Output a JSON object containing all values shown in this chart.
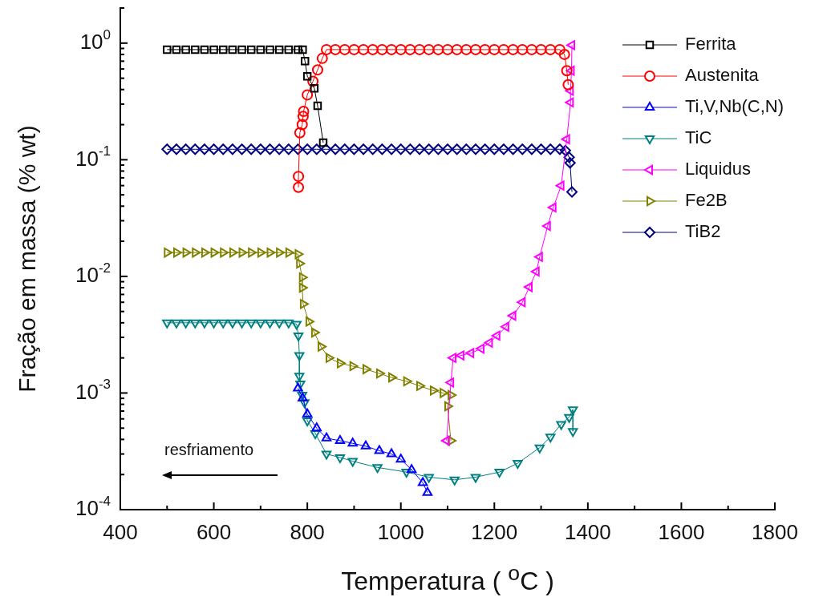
{
  "chart_data": {
    "type": "line",
    "xlabel": "Temperatura ( $^{o}$C )",
    "ylabel": "Fração em massa  (% wt)",
    "xlim": [
      400,
      1800
    ],
    "xticks": [
      400,
      {
        "value": 500,
        "label": null
      },
      600,
      {
        "value": 700,
        "label": null
      },
      800,
      {
        "value": 900,
        "label": null
      },
      1000,
      {
        "value": 1100,
        "label": null
      },
      1200,
      {
        "value": 1300,
        "label": null
      },
      1400,
      {
        "value": 1500,
        "label": null
      },
      1600,
      {
        "value": 1700,
        "label": null
      },
      1800
    ],
    "ylim": [
      0.0001,
      2
    ],
    "log": "y",
    "yticks": [
      {
        "value": 0.0001,
        "label": "10$^{-4}$"
      },
      {
        "value": 0.0002,
        "label": null
      },
      {
        "value": 0.0003,
        "label": null
      },
      {
        "value": 0.0004,
        "label": null
      },
      {
        "value": 0.0005,
        "label": null
      },
      {
        "value": 0.0006,
        "label": null
      },
      {
        "value": 0.0007,
        "label": null
      },
      {
        "value": 0.0008,
        "label": null
      },
      {
        "value": 0.0009,
        "label": null
      },
      {
        "value": 0.001,
        "label": "10$^{-3}$"
      },
      {
        "value": 0.002,
        "label": null
      },
      {
        "value": 0.003,
        "label": null
      },
      {
        "value": 0.004,
        "label": null
      },
      {
        "value": 0.005,
        "label": null
      },
      {
        "value": 0.006,
        "label": null
      },
      {
        "value": 0.007,
        "label": null
      },
      {
        "value": 0.008,
        "label": null
      },
      {
        "value": 0.009,
        "label": null
      },
      {
        "value": 0.01,
        "label": "10$^{-2}$"
      },
      {
        "value": 0.02,
        "label": null
      },
      {
        "value": 0.03,
        "label": null
      },
      {
        "value": 0.04,
        "label": null
      },
      {
        "value": 0.05,
        "label": null
      },
      {
        "value": 0.06,
        "label": null
      },
      {
        "value": 0.07,
        "label": null
      },
      {
        "value": 0.08,
        "label": null
      },
      {
        "value": 0.09,
        "label": null
      },
      {
        "value": 0.1,
        "label": "10$^{-1}$"
      },
      {
        "value": 0.2,
        "label": null
      },
      {
        "value": 0.3,
        "label": null
      },
      {
        "value": 0.4,
        "label": null
      },
      {
        "value": 0.5,
        "label": null
      },
      {
        "value": 0.6,
        "label": null
      },
      {
        "value": 0.7,
        "label": null
      },
      {
        "value": 0.8,
        "label": null
      },
      {
        "value": 0.9,
        "label": null
      },
      {
        "value": 1,
        "label": "10$^{0}$"
      },
      {
        "value": 2,
        "label": null
      }
    ],
    "grid": false,
    "legend": "top right",
    "line_style": "solid",
    "annotations": [
      "resfriamento"
    ],
    "series": [
      {
        "name": "Ferrita",
        "color": "#000000",
        "marker": "square",
        "x": [
          500,
          520,
          540,
          560,
          580,
          600,
          620,
          640,
          660,
          680,
          700,
          720,
          740,
          760,
          780,
          790,
          795,
          800,
          815,
          822,
          834
        ],
        "values": [
          0.88,
          0.88,
          0.88,
          0.88,
          0.88,
          0.88,
          0.88,
          0.88,
          0.88,
          0.88,
          0.88,
          0.88,
          0.88,
          0.88,
          0.88,
          0.88,
          0.7,
          0.52,
          0.41,
          0.29,
          0.14
        ]
      },
      {
        "name": "Austenita",
        "color": "#ff0000",
        "marker": "circle",
        "x": [
          781,
          781,
          784,
          789,
          791,
          792,
          800,
          812,
          822,
          832,
          841,
          860,
          880,
          900,
          920,
          940,
          960,
          980,
          1000,
          1020,
          1040,
          1060,
          1080,
          1100,
          1120,
          1140,
          1160,
          1180,
          1200,
          1220,
          1240,
          1260,
          1280,
          1300,
          1320,
          1340,
          1350,
          1355,
          1358
        ],
        "values": [
          0.058,
          0.072,
          0.17,
          0.2,
          0.235,
          0.26,
          0.36,
          0.47,
          0.59,
          0.74,
          0.88,
          0.88,
          0.88,
          0.88,
          0.88,
          0.88,
          0.88,
          0.88,
          0.88,
          0.88,
          0.88,
          0.88,
          0.88,
          0.88,
          0.88,
          0.88,
          0.88,
          0.88,
          0.88,
          0.88,
          0.88,
          0.88,
          0.88,
          0.88,
          0.88,
          0.88,
          0.8,
          0.58,
          0.44
        ]
      },
      {
        "name": "Ti,V,Nb(C,N)",
        "color": "#0000ff",
        "marker": "triangle",
        "x": [
          780,
          790,
          800,
          820,
          841,
          870,
          897,
          925,
          954,
          980,
          1000,
          1023,
          1047,
          1057
        ],
        "values": [
          0.0011,
          0.0009,
          0.00066,
          0.0005,
          0.00041,
          0.00039,
          0.00037,
          0.00035,
          0.00032,
          0.0003,
          0.00027,
          0.00022,
          0.00017,
          0.00014
        ]
      },
      {
        "name": "TiC",
        "color": "#008080",
        "marker": "triangle-down",
        "x": [
          500,
          520,
          540,
          560,
          580,
          600,
          620,
          640,
          660,
          680,
          700,
          720,
          740,
          760,
          777,
          781,
          783,
          783,
          785,
          789,
          794,
          800,
          817,
          841,
          870,
          897,
          950,
          1012,
          1060,
          1115,
          1160,
          1211,
          1250,
          1297,
          1320,
          1343,
          1360,
          1368,
          1368
        ],
        "values": [
          0.004,
          0.004,
          0.004,
          0.004,
          0.004,
          0.004,
          0.004,
          0.004,
          0.004,
          0.004,
          0.004,
          0.004,
          0.004,
          0.004,
          0.0039,
          0.0031,
          0.0021,
          0.0014,
          0.0012,
          0.00096,
          0.00083,
          0.00058,
          0.00045,
          0.0003,
          0.00028,
          0.00026,
          0.00023,
          0.00021,
          0.00019,
          0.00018,
          0.00019,
          0.00021,
          0.00025,
          0.00034,
          0.00042,
          0.00054,
          0.00062,
          0.00072,
          0.00047
        ]
      },
      {
        "name": "Liquidus",
        "color": "#ff00ff",
        "marker": "triangle-left",
        "x": [
          1098,
          1107,
          1112,
          1129,
          1150,
          1172,
          1190,
          1206,
          1225,
          1240,
          1260,
          1275,
          1290,
          1297,
          1314,
          1326,
          1343,
          1355,
          1363,
          1363,
          1365,
          1366
        ],
        "values": [
          0.00039,
          0.00123,
          0.002,
          0.0021,
          0.0022,
          0.0024,
          0.0027,
          0.0031,
          0.0037,
          0.0046,
          0.006,
          0.0081,
          0.011,
          0.0147,
          0.027,
          0.039,
          0.06,
          0.15,
          0.31,
          0.39,
          0.58,
          0.96
        ]
      },
      {
        "name": "Fe2B",
        "color": "#808000",
        "marker": "triangle-right",
        "x": [
          500,
          520,
          540,
          560,
          580,
          600,
          620,
          640,
          660,
          680,
          700,
          720,
          740,
          760,
          780,
          783,
          789,
          789,
          791,
          803,
          815,
          829,
          846,
          870,
          897,
          925,
          954,
          980,
          1012,
          1040,
          1069,
          1090,
          1107,
          1100,
          1107
        ],
        "values": [
          0.016,
          0.016,
          0.016,
          0.016,
          0.016,
          0.016,
          0.016,
          0.016,
          0.016,
          0.016,
          0.016,
          0.016,
          0.016,
          0.016,
          0.0155,
          0.0129,
          0.0098,
          0.008,
          0.0058,
          0.0041,
          0.0033,
          0.0025,
          0.002,
          0.0018,
          0.0017,
          0.0016,
          0.00147,
          0.00136,
          0.00126,
          0.00115,
          0.00105,
          0.001,
          0.00096,
          0.00077,
          0.00039
        ]
      },
      {
        "name": "TiB2",
        "color": "#000080",
        "marker": "diamond",
        "x": [
          500,
          520,
          540,
          560,
          580,
          600,
          620,
          640,
          660,
          680,
          700,
          720,
          740,
          760,
          780,
          800,
          820,
          840,
          860,
          880,
          900,
          920,
          940,
          960,
          980,
          1000,
          1020,
          1040,
          1060,
          1080,
          1100,
          1120,
          1140,
          1160,
          1180,
          1200,
          1220,
          1240,
          1260,
          1280,
          1300,
          1320,
          1340,
          1352,
          1360,
          1362,
          1366
        ],
        "values": [
          0.123,
          0.123,
          0.123,
          0.123,
          0.123,
          0.123,
          0.123,
          0.123,
          0.123,
          0.123,
          0.123,
          0.123,
          0.123,
          0.123,
          0.123,
          0.123,
          0.123,
          0.123,
          0.123,
          0.123,
          0.123,
          0.123,
          0.123,
          0.123,
          0.123,
          0.123,
          0.123,
          0.123,
          0.123,
          0.123,
          0.123,
          0.123,
          0.123,
          0.123,
          0.123,
          0.123,
          0.123,
          0.123,
          0.123,
          0.123,
          0.123,
          0.123,
          0.123,
          0.12,
          0.105,
          0.094,
          0.053
        ]
      }
    ]
  }
}
